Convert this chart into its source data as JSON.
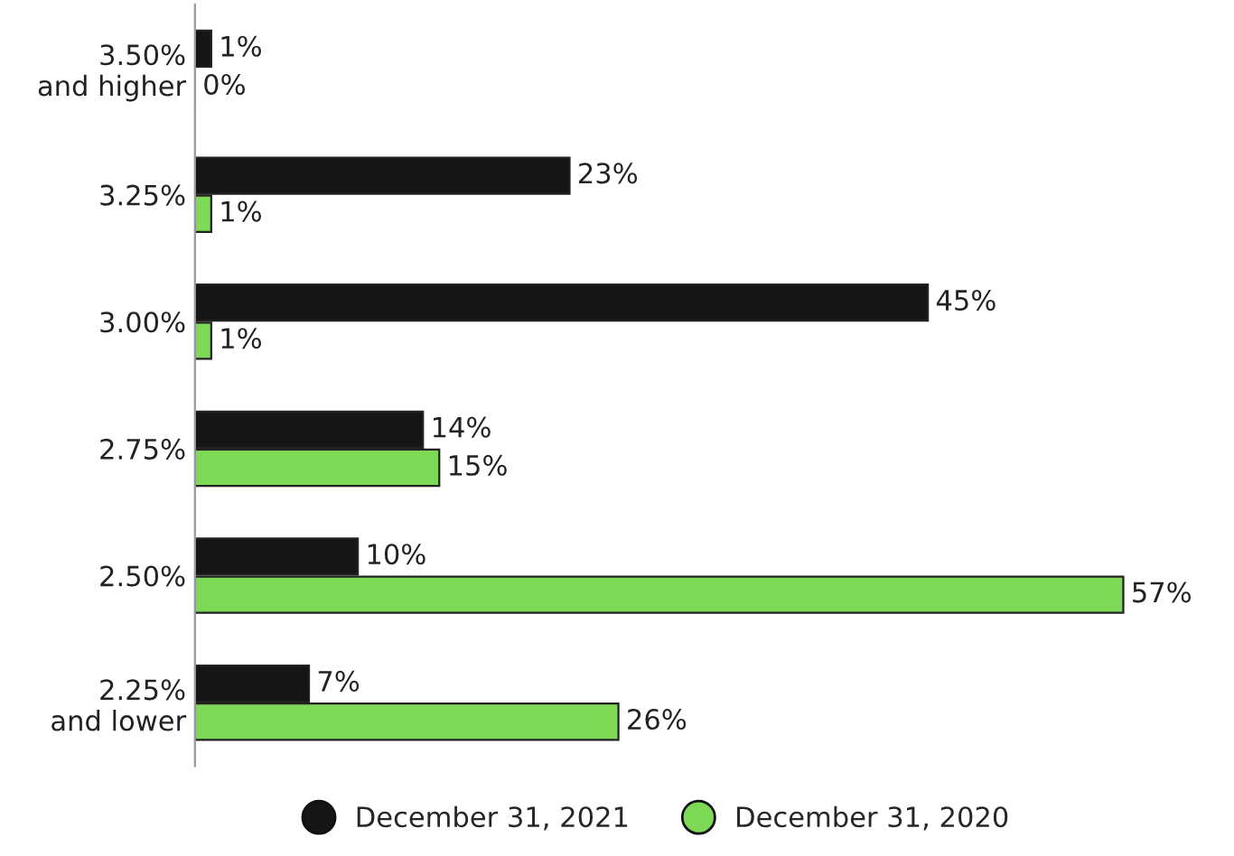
{
  "chart_data": {
    "type": "bar",
    "orientation": "horizontal",
    "categories": [
      "3.50%\nand higher",
      "3.25%",
      "3.00%",
      "2.75%",
      "2.50%",
      "2.25%\nand lower"
    ],
    "series": [
      {
        "name": "December 31, 2021",
        "color": "#151515",
        "values": [
          1,
          23,
          45,
          14,
          10,
          7
        ],
        "value_labels": [
          "1%",
          "23%",
          "45%",
          "14%",
          "10%",
          "7%"
        ]
      },
      {
        "name": "December 31, 2020",
        "color": "#7ed957",
        "values": [
          0,
          1,
          1,
          15,
          57,
          26
        ],
        "value_labels": [
          "0%",
          "1%",
          "1%",
          "15%",
          "57%",
          "26%"
        ]
      }
    ],
    "legend": "bottom",
    "marker": "circle",
    "grid": false
  }
}
